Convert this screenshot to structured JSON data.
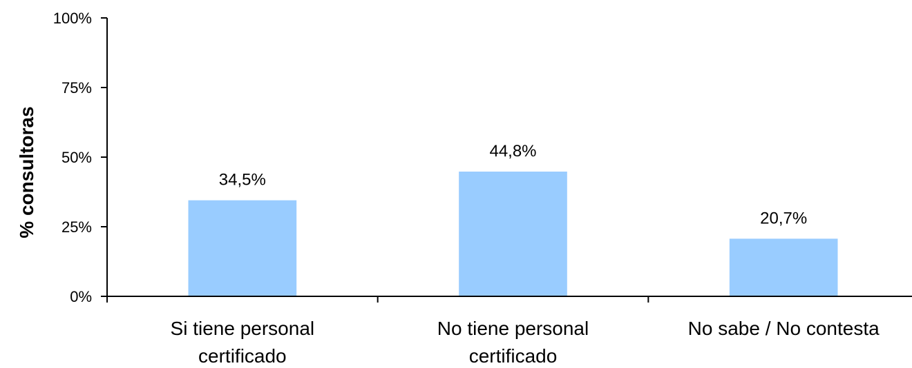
{
  "chart_data": {
    "type": "bar",
    "categories": [
      [
        "Si tiene personal",
        "certificado"
      ],
      [
        "No tiene personal",
        "certificado"
      ],
      [
        "No sabe  / No contesta"
      ]
    ],
    "values": [
      34.5,
      44.8,
      20.7
    ],
    "data_labels": [
      "34,5%",
      "44,8%",
      "20,7%"
    ],
    "title": "",
    "xlabel": "",
    "ylabel": "% consultoras",
    "ylim": [
      0,
      100
    ],
    "yticks": [
      {
        "value": 0,
        "label": "0%"
      },
      {
        "value": 25,
        "label": "25%"
      },
      {
        "value": 50,
        "label": "50%"
      },
      {
        "value": 75,
        "label": "75%"
      },
      {
        "value": 100,
        "label": "100%"
      }
    ],
    "grid": false,
    "legend": "none",
    "colors": {
      "bar": "#99ccff",
      "axis": "#000000"
    }
  }
}
